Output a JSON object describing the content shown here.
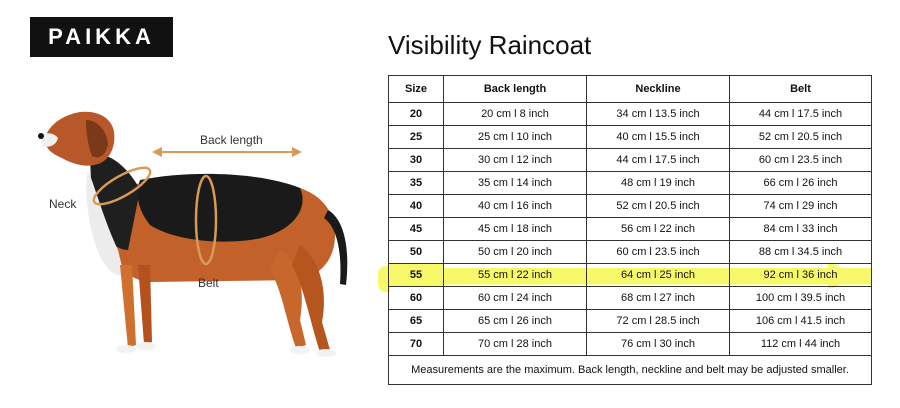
{
  "brand": {
    "logo_text": "PAIKKA"
  },
  "title": "Visibility Raincoat",
  "diagram": {
    "back_length_label": "Back length",
    "neck_label": "Neck",
    "belt_label": "Belt"
  },
  "table": {
    "headers": [
      "Size",
      "Back length",
      "Neckline",
      "Belt"
    ],
    "rows": [
      [
        "20",
        "20 cm l 8 inch",
        "34 cm l 13.5 inch",
        "44 cm l 17.5 inch"
      ],
      [
        "25",
        "25 cm l 10 inch",
        "40 cm l 15.5 inch",
        "52 cm l 20.5 inch"
      ],
      [
        "30",
        "30 cm l 12 inch",
        "44 cm l 17.5 inch",
        "60 cm l 23.5 inch"
      ],
      [
        "35",
        "35 cm l 14 inch",
        "48 cm l 19 inch",
        "66 cm l 26 inch"
      ],
      [
        "40",
        "40 cm l 16 inch",
        "52 cm l 20.5 inch",
        "74 cm l 29 inch"
      ],
      [
        "45",
        "45 cm l 18 inch",
        "56 cm l 22 inch",
        "84 cm l 33 inch"
      ],
      [
        "50",
        "50 cm l 20 inch",
        "60 cm l 23.5 inch",
        "88 cm l 34.5 inch"
      ],
      [
        "55",
        "55 cm l 22 inch",
        "64 cm l 25 inch",
        "92 cm l 36 inch"
      ],
      [
        "60",
        "60 cm l 24 inch",
        "68 cm l 27 inch",
        "100 cm l 39.5 inch"
      ],
      [
        "65",
        "65 cm l 26 inch",
        "72 cm l 28.5 inch",
        "106 cm l 41.5 inch"
      ],
      [
        "70",
        "70 cm l 28 inch",
        "76 cm l 30 inch",
        "112 cm l 44 inch"
      ]
    ],
    "highlighted_size": "55",
    "highlight_color": "#f6f86a",
    "footer": "Measurements are the maximum. Back length, neckline and belt may be adjusted smaller."
  }
}
